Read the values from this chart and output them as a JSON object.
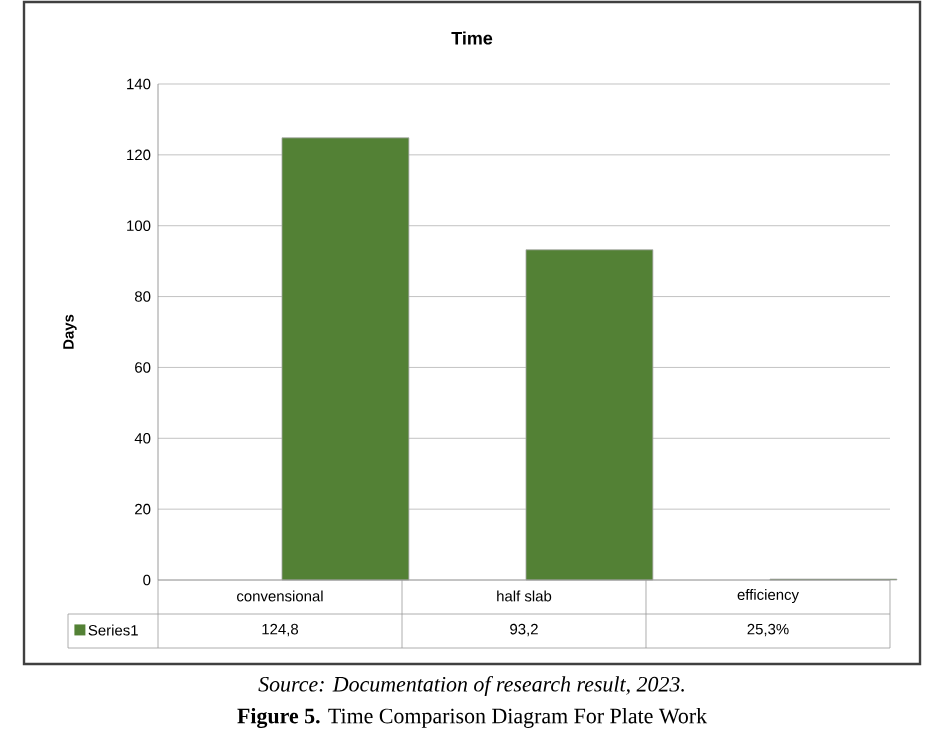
{
  "chart_data": {
    "type": "bar",
    "title": "Time",
    "ylabel": "Days",
    "categories": [
      "convensional",
      "half slab",
      "efficiency"
    ],
    "series": [
      {
        "name": "Series1",
        "color": "#538135",
        "values": [
          124.8,
          93.2,
          0.253
        ],
        "value_labels": [
          "124,8",
          "93,2",
          "25,3%"
        ]
      }
    ],
    "ylim": [
      0,
      140
    ],
    "yticks": [
      0,
      20,
      40,
      60,
      80,
      100,
      120,
      140
    ],
    "grid": "y",
    "legend": "bottom left",
    "annotations": [
      "*Source: Documentation of research result, 2023.*",
      "**Figure 5.** Time Comparison Diagram For Plate Work"
    ]
  }
}
